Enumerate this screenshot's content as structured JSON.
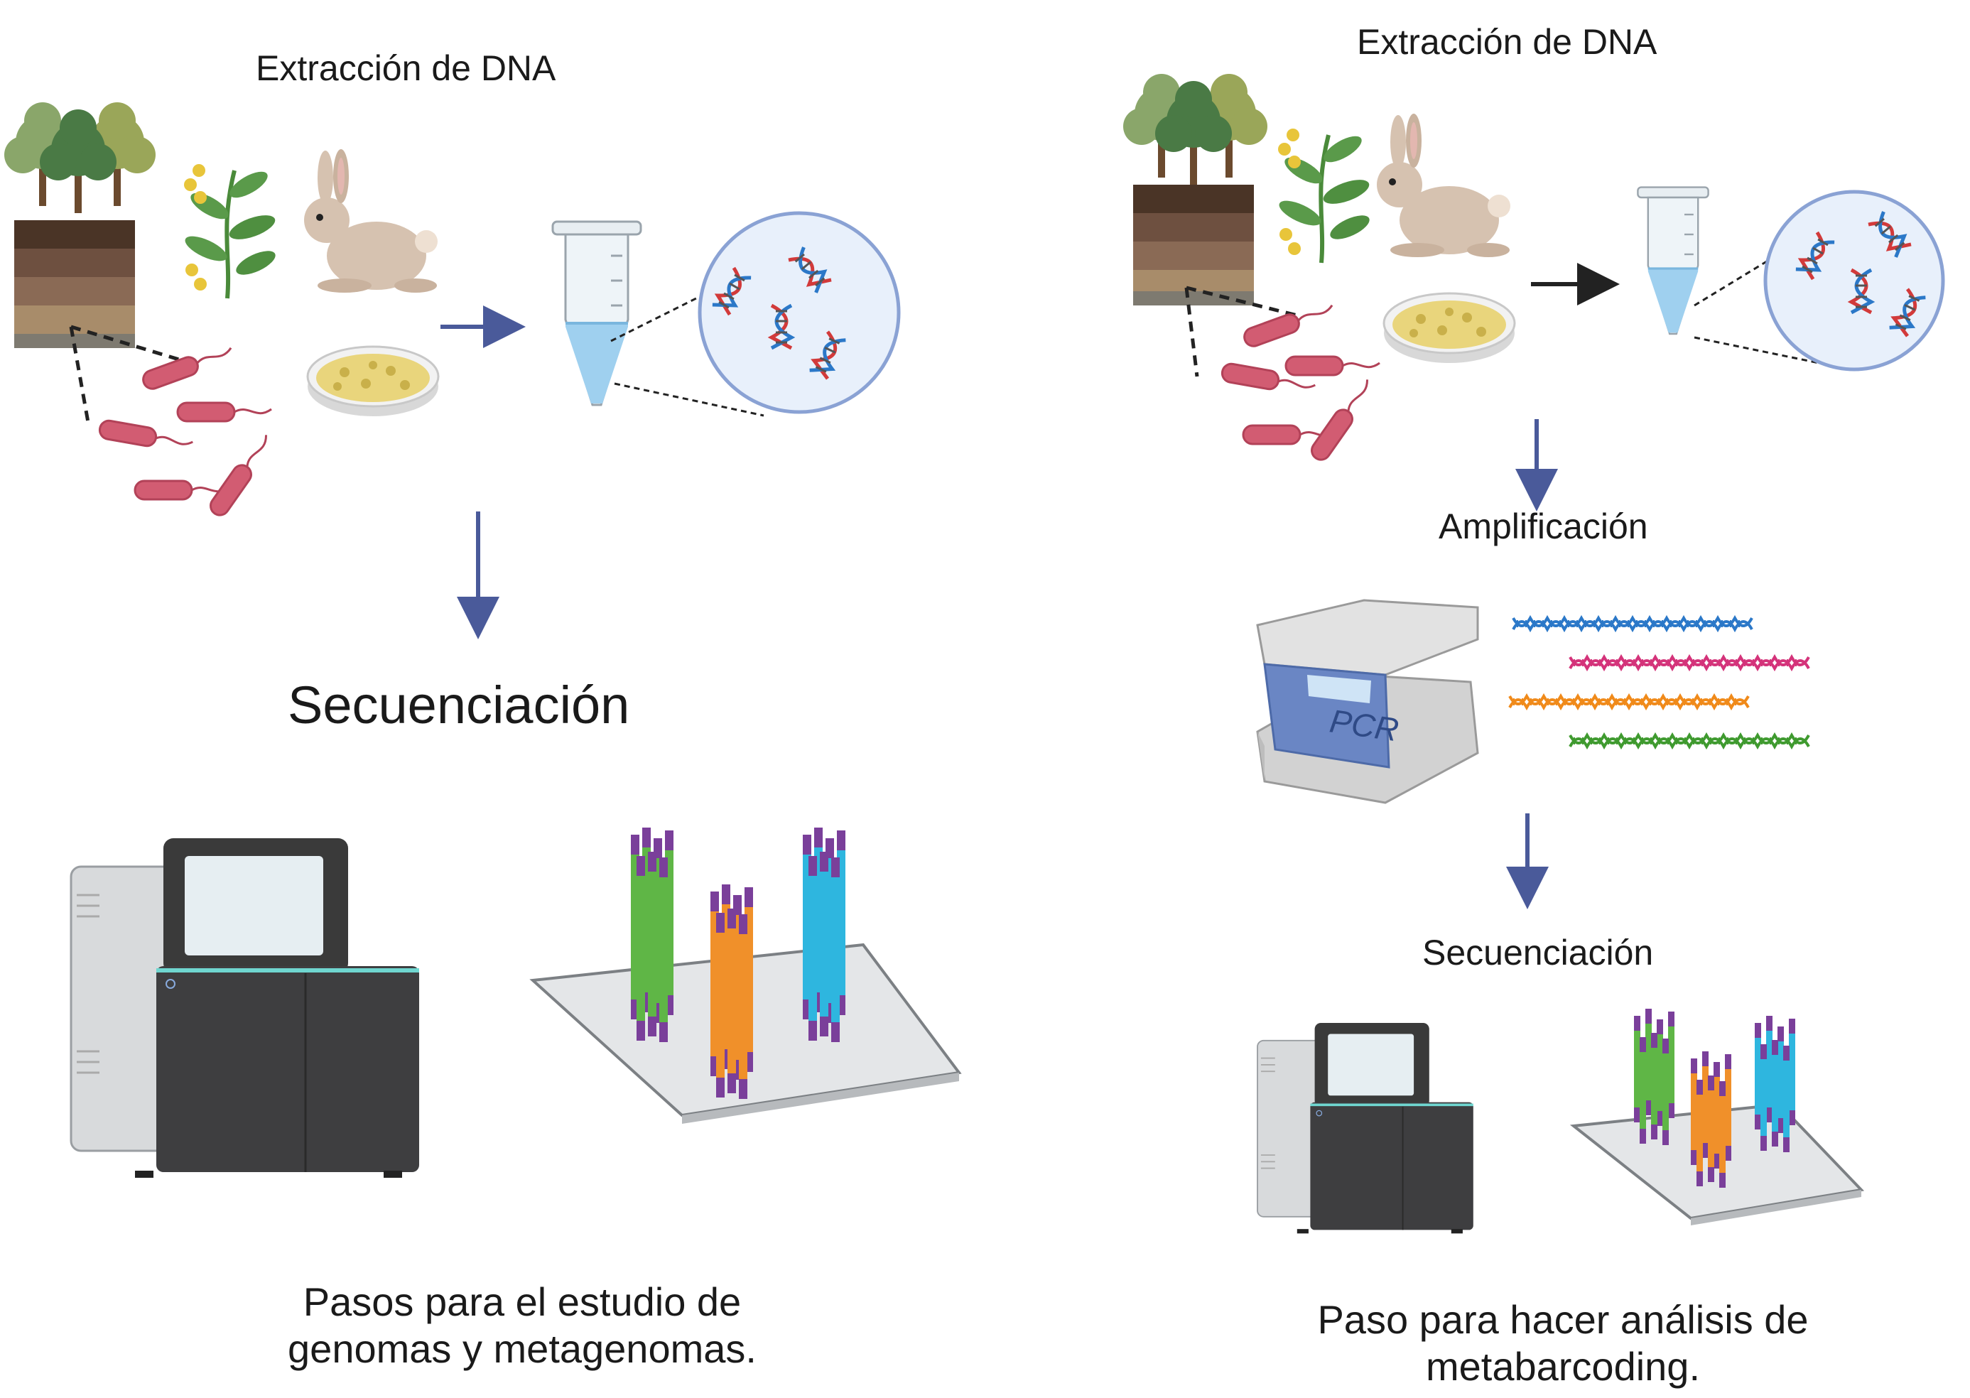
{
  "left_panel": {
    "extraction_title": "Extracción de DNA",
    "sequencing_title": "Secuenciación",
    "caption": "Pasos para el estudio de genomas y metagenomas."
  },
  "right_panel": {
    "extraction_title": "Extracción de DNA",
    "amplification_title": "Amplificación",
    "pcr_label": "PCR",
    "sequencing_title": "Secuenciación",
    "caption": "Paso para hacer análisis de metabarcoding."
  },
  "icons": [
    "trees-icon",
    "soil-layers-icon",
    "plant-icon",
    "rabbit-icon",
    "bacteria-icon",
    "petri-dish-icon",
    "tube-icon",
    "dna-circle-icon",
    "sequencer-icon",
    "flow-cell-icon",
    "pcr-machine-icon",
    "dna-strand-icon"
  ],
  "colors": {
    "arrow": "#4a5a9a",
    "dna_blue": "#2b78c8",
    "dna_pink": "#d4337a",
    "dna_orange": "#f08a1a",
    "dna_green": "#3f9a2f",
    "bar_green": "#5fb646",
    "bar_orange": "#f0902a",
    "bar_cyan": "#2eb6df",
    "bar_purple": "#7a3f9a",
    "bacteria": "#d25c72"
  }
}
